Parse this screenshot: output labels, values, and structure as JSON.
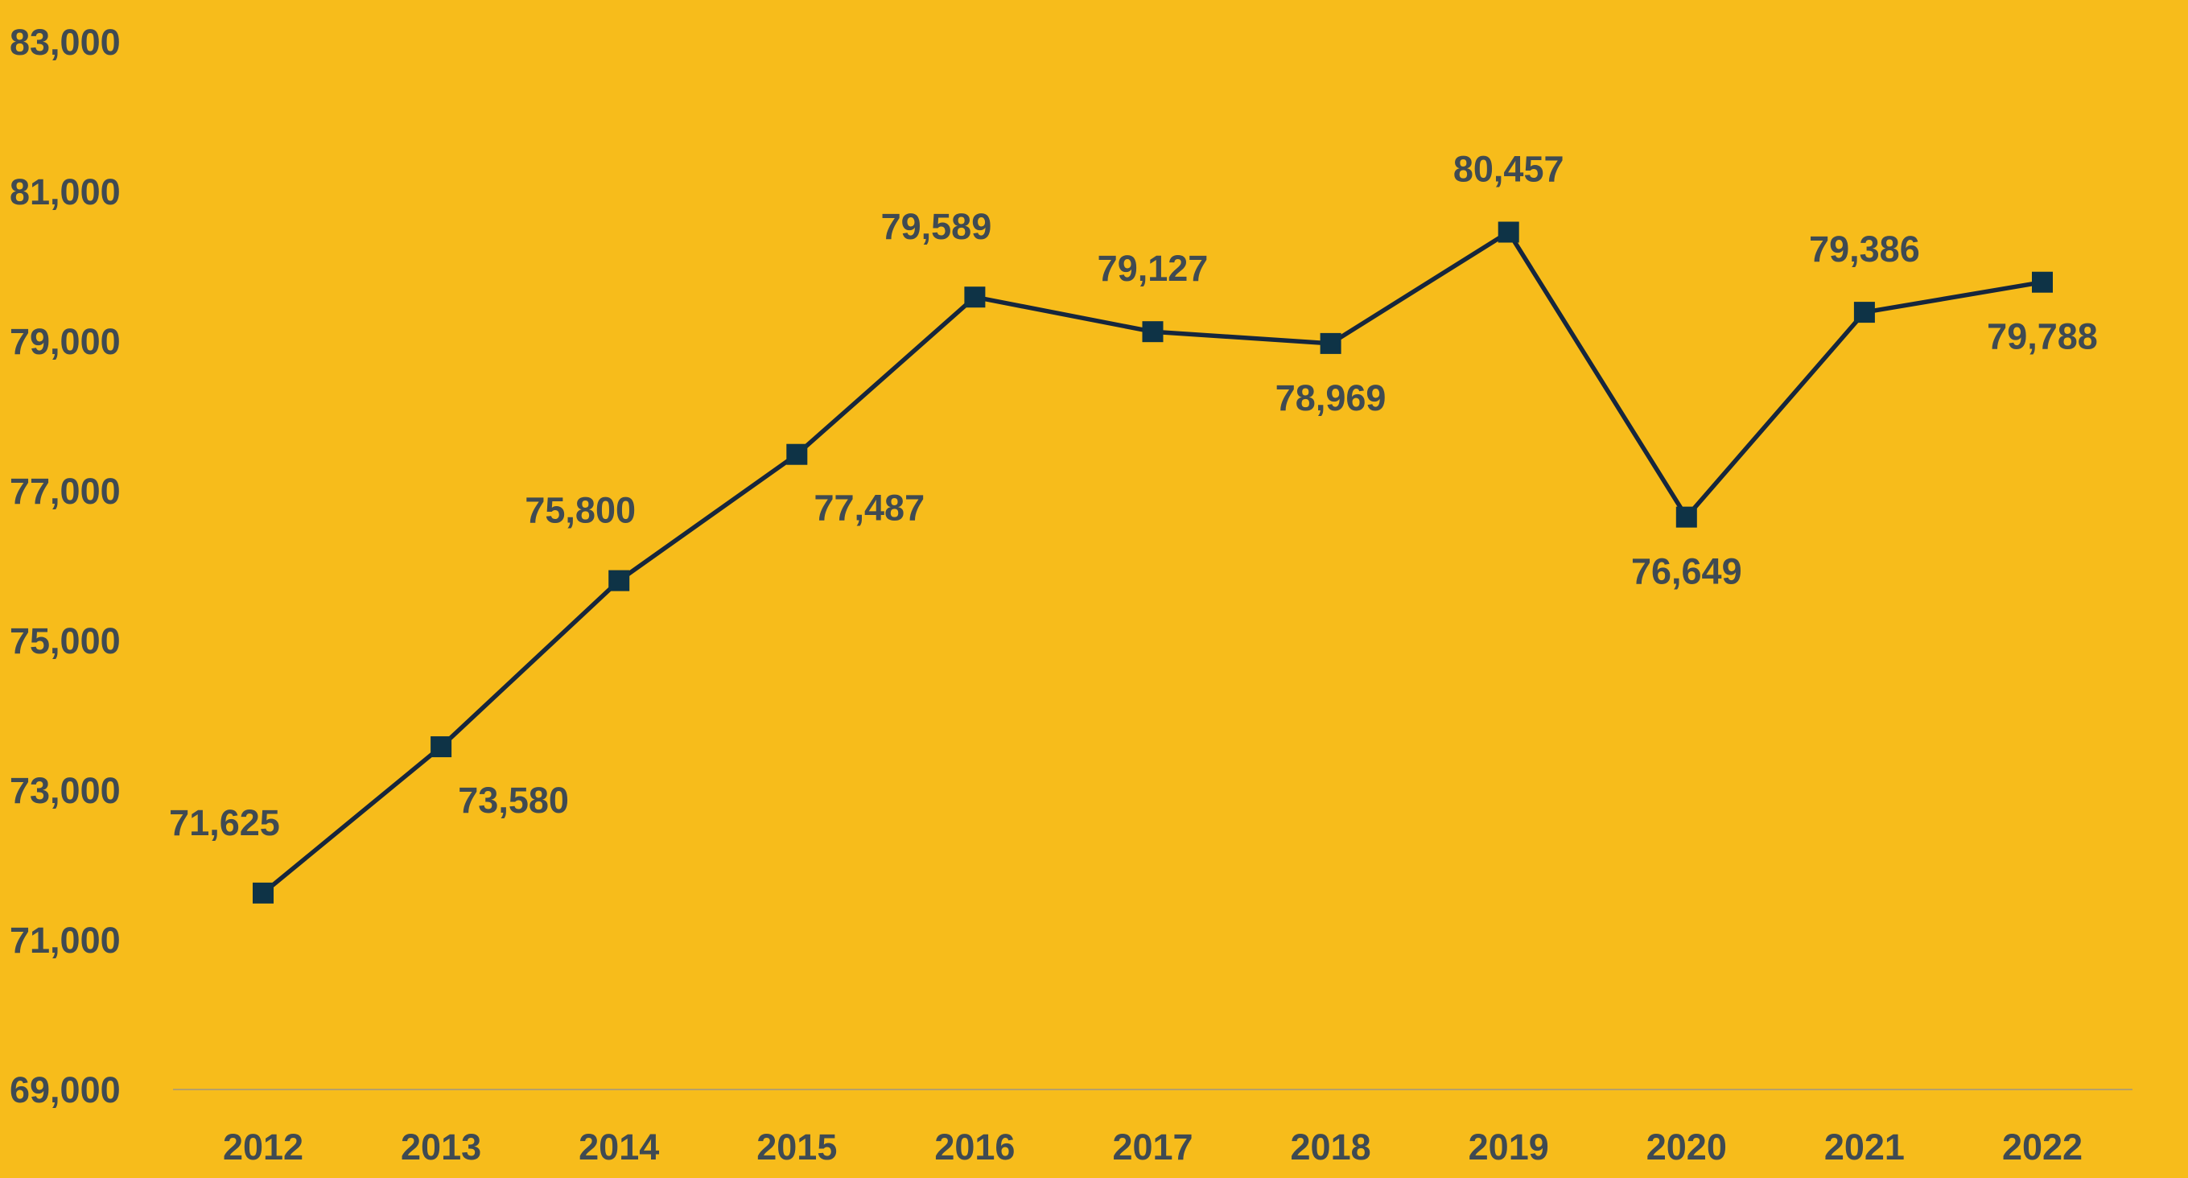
{
  "colors": {
    "background": "#F7BC1B",
    "line": "#16263D",
    "marker": "#0E3346",
    "text": "#3F4A52",
    "axis": "#B5A06A"
  },
  "chart_data": {
    "type": "line",
    "title": "",
    "xlabel": "",
    "ylabel": "",
    "categories": [
      "2012",
      "2013",
      "2014",
      "2015",
      "2016",
      "2017",
      "2018",
      "2019",
      "2020",
      "2021",
      "2022"
    ],
    "series": [
      {
        "values": [
          71625,
          73580,
          75800,
          77487,
          79589,
          79127,
          78969,
          80457,
          76649,
          79386,
          79788
        ],
        "labels": [
          "71,625",
          "73,580",
          "75,800",
          "77,487",
          "79,589",
          "79,127",
          "78,969",
          "80,457",
          "76,649",
          "79,386",
          "79,788"
        ],
        "label_positions": [
          "above-left",
          "below-right",
          "above-left",
          "below-right",
          "above-left",
          "above",
          "below",
          "above",
          "below",
          "above",
          "below"
        ],
        "marker": "square"
      }
    ],
    "ylim": [
      69000,
      83000
    ],
    "yticks": [
      69000,
      71000,
      73000,
      75000,
      77000,
      79000,
      81000,
      83000
    ],
    "ytick_labels": [
      "69,000",
      "71,000",
      "73,000",
      "75,000",
      "77,000",
      "79,000",
      "81,000",
      "83,000"
    ],
    "grid": false,
    "legend": "none"
  }
}
